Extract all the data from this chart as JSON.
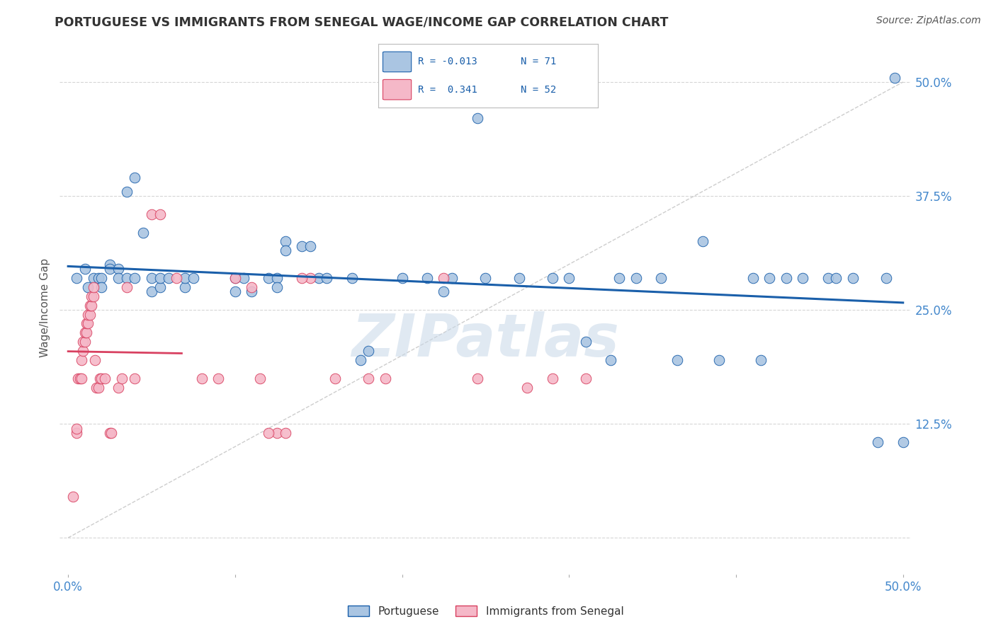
{
  "title": "PORTUGUESE VS IMMIGRANTS FROM SENEGAL WAGE/INCOME GAP CORRELATION CHART",
  "source": "Source: ZipAtlas.com",
  "ylabel": "Wage/Income Gap",
  "y_ticks": [
    0.0,
    0.125,
    0.25,
    0.375,
    0.5
  ],
  "y_tick_labels": [
    "",
    "12.5%",
    "25.0%",
    "37.5%",
    "50.0%"
  ],
  "x_minor_ticks": [
    0.0,
    0.1,
    0.2,
    0.3,
    0.4,
    0.5
  ],
  "xlim": [
    -0.005,
    0.505
  ],
  "ylim": [
    -0.04,
    0.545
  ],
  "legend_blue_label": "Portuguese",
  "legend_pink_label": "Immigrants from Senegal",
  "blue_color": "#aac5e2",
  "blue_line_color": "#1a5faa",
  "pink_color": "#f5b8c8",
  "pink_line_color": "#d84060",
  "diag_line_color": "#c8c8c8",
  "watermark": "ZIPatlas",
  "bg_color": "#ffffff",
  "grid_color": "#cccccc",
  "blue_points": [
    [
      0.005,
      0.285
    ],
    [
      0.01,
      0.295
    ],
    [
      0.012,
      0.275
    ],
    [
      0.015,
      0.285
    ],
    [
      0.018,
      0.285
    ],
    [
      0.02,
      0.285
    ],
    [
      0.02,
      0.275
    ],
    [
      0.025,
      0.3
    ],
    [
      0.025,
      0.295
    ],
    [
      0.03,
      0.295
    ],
    [
      0.03,
      0.285
    ],
    [
      0.035,
      0.38
    ],
    [
      0.035,
      0.285
    ],
    [
      0.04,
      0.395
    ],
    [
      0.04,
      0.285
    ],
    [
      0.045,
      0.335
    ],
    [
      0.05,
      0.285
    ],
    [
      0.05,
      0.27
    ],
    [
      0.055,
      0.275
    ],
    [
      0.055,
      0.285
    ],
    [
      0.06,
      0.285
    ],
    [
      0.07,
      0.275
    ],
    [
      0.07,
      0.285
    ],
    [
      0.075,
      0.285
    ],
    [
      0.1,
      0.285
    ],
    [
      0.1,
      0.27
    ],
    [
      0.105,
      0.285
    ],
    [
      0.11,
      0.27
    ],
    [
      0.12,
      0.285
    ],
    [
      0.125,
      0.285
    ],
    [
      0.125,
      0.275
    ],
    [
      0.13,
      0.325
    ],
    [
      0.13,
      0.315
    ],
    [
      0.14,
      0.32
    ],
    [
      0.145,
      0.32
    ],
    [
      0.15,
      0.285
    ],
    [
      0.155,
      0.285
    ],
    [
      0.17,
      0.285
    ],
    [
      0.175,
      0.195
    ],
    [
      0.18,
      0.205
    ],
    [
      0.2,
      0.285
    ],
    [
      0.215,
      0.285
    ],
    [
      0.225,
      0.27
    ],
    [
      0.23,
      0.285
    ],
    [
      0.245,
      0.46
    ],
    [
      0.25,
      0.285
    ],
    [
      0.27,
      0.285
    ],
    [
      0.29,
      0.285
    ],
    [
      0.3,
      0.285
    ],
    [
      0.31,
      0.215
    ],
    [
      0.325,
      0.195
    ],
    [
      0.33,
      0.285
    ],
    [
      0.34,
      0.285
    ],
    [
      0.355,
      0.285
    ],
    [
      0.365,
      0.195
    ],
    [
      0.38,
      0.325
    ],
    [
      0.39,
      0.195
    ],
    [
      0.41,
      0.285
    ],
    [
      0.415,
      0.195
    ],
    [
      0.42,
      0.285
    ],
    [
      0.43,
      0.285
    ],
    [
      0.44,
      0.285
    ],
    [
      0.455,
      0.285
    ],
    [
      0.46,
      0.285
    ],
    [
      0.47,
      0.285
    ],
    [
      0.485,
      0.105
    ],
    [
      0.49,
      0.285
    ],
    [
      0.495,
      0.505
    ],
    [
      0.5,
      0.105
    ]
  ],
  "pink_points": [
    [
      0.003,
      0.045
    ],
    [
      0.005,
      0.115
    ],
    [
      0.005,
      0.12
    ],
    [
      0.006,
      0.175
    ],
    [
      0.007,
      0.175
    ],
    [
      0.008,
      0.175
    ],
    [
      0.008,
      0.195
    ],
    [
      0.009,
      0.205
    ],
    [
      0.009,
      0.215
    ],
    [
      0.01,
      0.215
    ],
    [
      0.01,
      0.225
    ],
    [
      0.011,
      0.225
    ],
    [
      0.011,
      0.235
    ],
    [
      0.012,
      0.235
    ],
    [
      0.012,
      0.245
    ],
    [
      0.013,
      0.245
    ],
    [
      0.013,
      0.255
    ],
    [
      0.014,
      0.255
    ],
    [
      0.014,
      0.265
    ],
    [
      0.015,
      0.265
    ],
    [
      0.015,
      0.275
    ],
    [
      0.016,
      0.195
    ],
    [
      0.017,
      0.165
    ],
    [
      0.018,
      0.165
    ],
    [
      0.019,
      0.175
    ],
    [
      0.02,
      0.175
    ],
    [
      0.022,
      0.175
    ],
    [
      0.025,
      0.115
    ],
    [
      0.026,
      0.115
    ],
    [
      0.03,
      0.165
    ],
    [
      0.032,
      0.175
    ],
    [
      0.035,
      0.275
    ],
    [
      0.04,
      0.175
    ],
    [
      0.05,
      0.355
    ],
    [
      0.055,
      0.355
    ],
    [
      0.065,
      0.285
    ],
    [
      0.115,
      0.175
    ],
    [
      0.125,
      0.115
    ],
    [
      0.145,
      0.285
    ],
    [
      0.19,
      0.175
    ],
    [
      0.225,
      0.285
    ],
    [
      0.245,
      0.175
    ],
    [
      0.275,
      0.165
    ],
    [
      0.29,
      0.175
    ],
    [
      0.31,
      0.175
    ],
    [
      0.08,
      0.175
    ],
    [
      0.09,
      0.175
    ],
    [
      0.1,
      0.285
    ],
    [
      0.11,
      0.275
    ],
    [
      0.12,
      0.115
    ],
    [
      0.13,
      0.115
    ],
    [
      0.14,
      0.285
    ],
    [
      0.16,
      0.175
    ],
    [
      0.18,
      0.175
    ]
  ]
}
